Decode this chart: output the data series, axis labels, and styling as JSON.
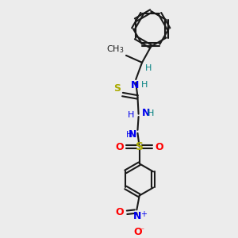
{
  "bg_color": "#ececec",
  "bond_color": "#1a1a1a",
  "atoms": {
    "N_blue": "#0000ee",
    "S_yellow": "#aaaa00",
    "O_red": "#ff0000",
    "H_teal": "#008080",
    "C_black": "#1a1a1a"
  },
  "lw": 1.5,
  "fs": 9,
  "fsh": 8,
  "xlim": [
    0,
    10
  ],
  "ylim": [
    0,
    12
  ]
}
